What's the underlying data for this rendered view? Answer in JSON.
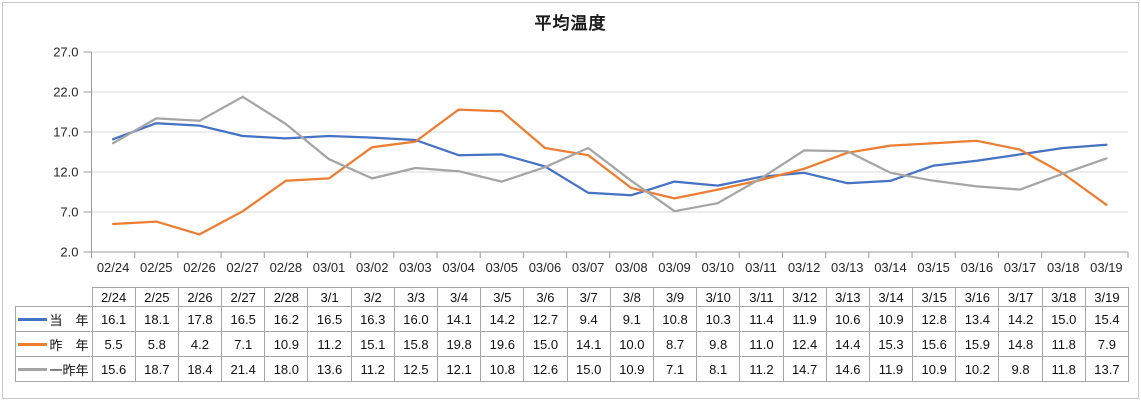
{
  "chart_data": {
    "type": "line",
    "title": "平均温度",
    "x": [
      "02/24",
      "02/25",
      "02/26",
      "02/27",
      "02/28",
      "03/01",
      "03/02",
      "03/03",
      "03/04",
      "03/05",
      "03/06",
      "03/07",
      "03/08",
      "03/09",
      "03/10",
      "03/11",
      "03/12",
      "03/13",
      "03/14",
      "03/15",
      "03/16",
      "03/17",
      "03/18",
      "03/19"
    ],
    "series": [
      {
        "key": "this-year",
        "name": "当　年",
        "color": "#4472C4",
        "values": [
          16.1,
          18.1,
          17.8,
          16.5,
          16.2,
          16.5,
          16.3,
          16.0,
          14.1,
          14.2,
          12.7,
          9.4,
          9.1,
          10.8,
          10.3,
          11.4,
          11.9,
          10.6,
          10.9,
          12.8,
          13.4,
          14.2,
          15.0,
          15.4
        ]
      },
      {
        "key": "last-year",
        "name": "昨　年",
        "color": "#ED7D31",
        "values": [
          5.5,
          5.8,
          4.2,
          7.1,
          10.9,
          11.2,
          15.1,
          15.8,
          19.8,
          19.6,
          15.0,
          14.1,
          10.0,
          8.7,
          9.8,
          11.0,
          12.4,
          14.4,
          15.3,
          15.6,
          15.9,
          14.8,
          11.8,
          7.9
        ]
      },
      {
        "key": "two-years-ago",
        "name": "一昨年",
        "color": "#A5A5A5",
        "values": [
          15.6,
          18.7,
          18.4,
          21.4,
          18.0,
          13.6,
          11.2,
          12.5,
          12.1,
          10.8,
          12.6,
          15.0,
          10.9,
          7.1,
          8.1,
          11.2,
          14.7,
          14.6,
          11.9,
          10.9,
          10.2,
          9.8,
          11.8,
          13.7
        ]
      }
    ],
    "ylim": [
      2.0,
      27.0
    ],
    "y_tick_labels": [
      "27.0",
      "22.0",
      "17.0",
      "12.0",
      "7.0",
      "2.0"
    ],
    "grid": "horizontal",
    "legend_position": "data-table-left"
  },
  "table": {
    "column_headers": [
      "2/24",
      "2/25",
      "2/26",
      "2/27",
      "2/28",
      "3/1",
      "3/2",
      "3/3",
      "3/4",
      "3/5",
      "3/6",
      "3/7",
      "3/8",
      "3/9",
      "3/10",
      "3/11",
      "3/12",
      "3/13",
      "3/14",
      "3/15",
      "3/16",
      "3/17",
      "3/18",
      "3/19"
    ]
  },
  "colors": {
    "series_blue": "#4472C4",
    "series_orange": "#ED7D31",
    "series_gray": "#A5A5A5",
    "gridline": "#D9D9D9",
    "axis": "#9B9B9B",
    "table_border": "#A6A6A6",
    "text": "#262626"
  }
}
